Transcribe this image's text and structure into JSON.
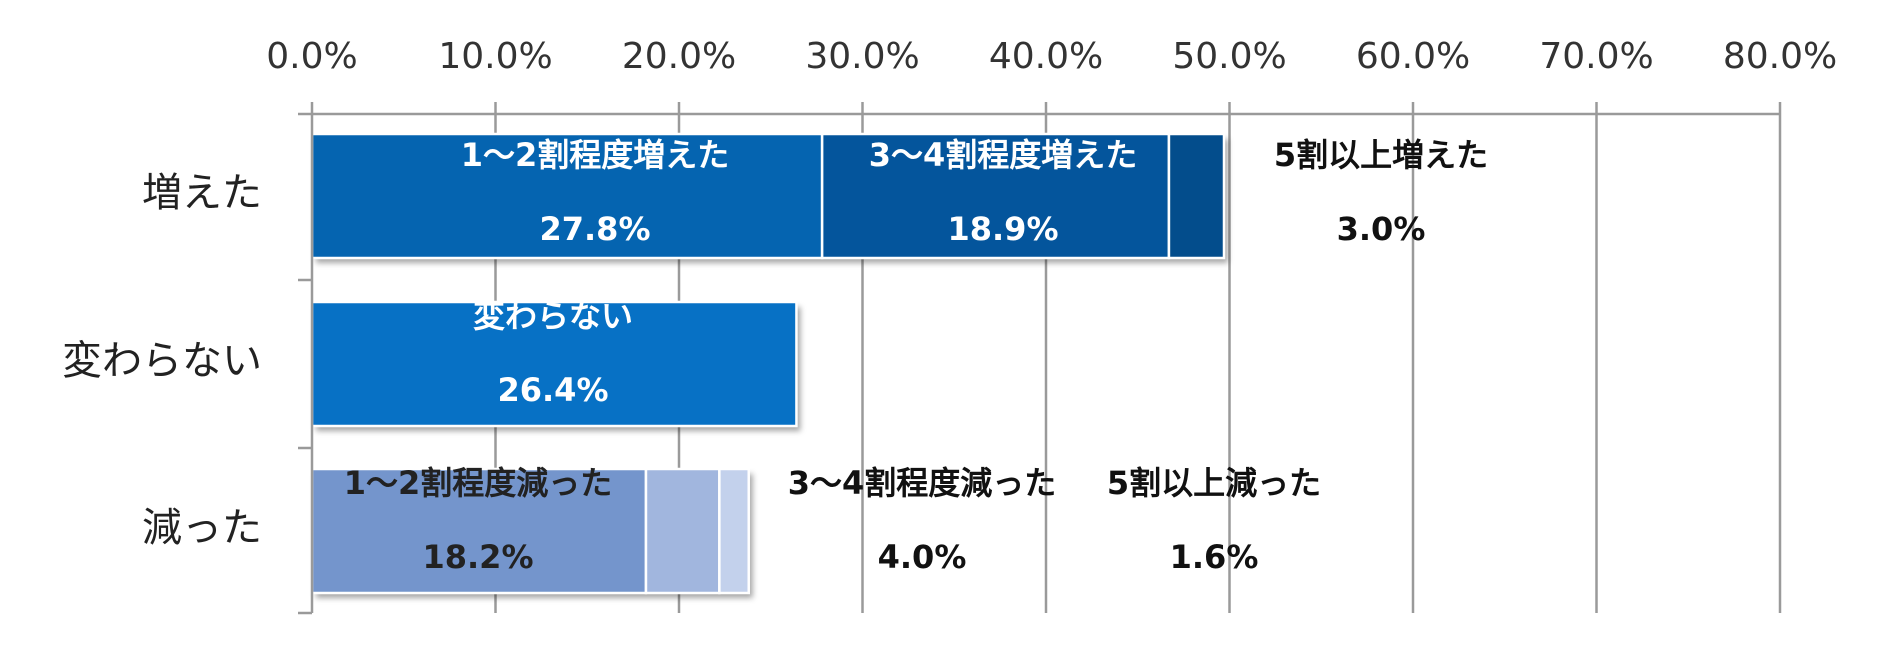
{
  "chart_data": {
    "type": "bar",
    "orientation": "horizontal",
    "stacked": true,
    "xlim": [
      0,
      80
    ],
    "ticks": [
      "0.0%",
      "10.0%",
      "20.0%",
      "30.0%",
      "40.0%",
      "50.0%",
      "60.0%",
      "70.0%",
      "80.0%"
    ],
    "tick_values": [
      0,
      10,
      20,
      30,
      40,
      50,
      60,
      70,
      80
    ],
    "grid": true,
    "categories": [
      {
        "label": "増えた",
        "segments": [
          {
            "name": "1～2割程度増えた",
            "value": 27.8,
            "value_label": "27.8%",
            "color": "#0564b0",
            "label_color": "#ffffff"
          },
          {
            "name": "3～4割程度増えた",
            "value": 18.9,
            "value_label": "18.9%",
            "color": "#04559c",
            "label_color": "#ffffff"
          },
          {
            "name": "5割以上増えた",
            "value": 3.0,
            "value_label": "3.0%",
            "color": "#034d8c",
            "label_color": "#111111"
          }
        ]
      },
      {
        "label": "変わらない",
        "segments": [
          {
            "name": "変わらない",
            "value": 26.4,
            "value_label": "26.4%",
            "color": "#0771c5",
            "label_color": "#ffffff"
          }
        ]
      },
      {
        "label": "減った",
        "segments": [
          {
            "name": "1～2割程度減った",
            "value": 18.2,
            "value_label": "18.2%",
            "color": "#7495cc",
            "label_color": "#222222"
          },
          {
            "name": "3～4割程度減った",
            "value": 4.0,
            "value_label": "4.0%",
            "color": "#a1b6de",
            "label_color": "#111111"
          },
          {
            "name": "5割以上減った",
            "value": 1.6,
            "value_label": "1.6%",
            "color": "#c3d1ec",
            "label_color": "#111111"
          }
        ]
      }
    ]
  }
}
